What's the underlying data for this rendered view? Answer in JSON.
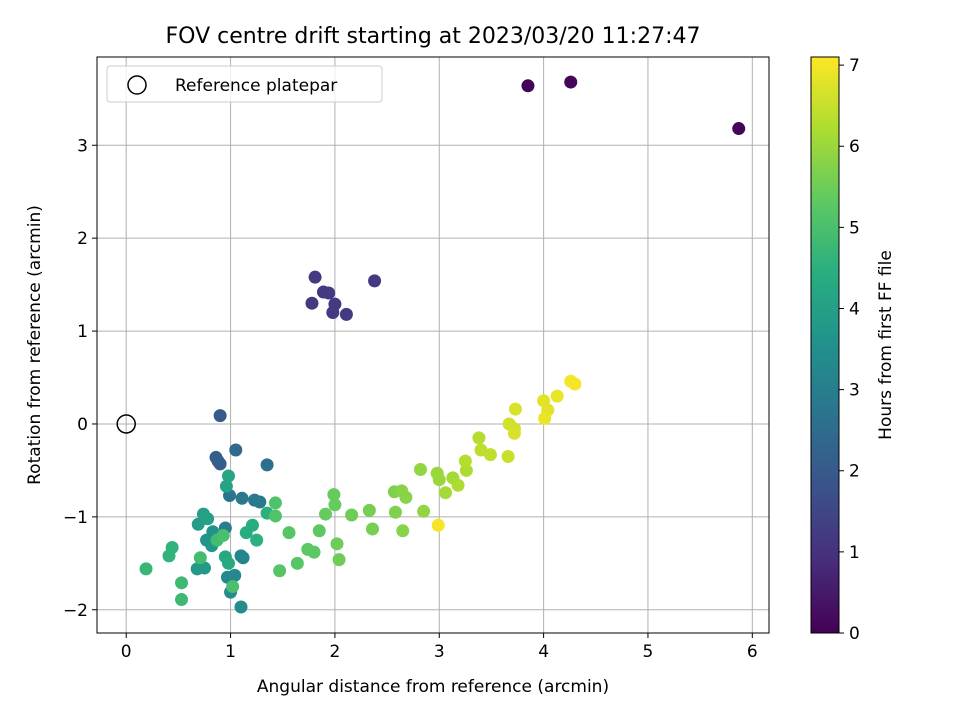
{
  "chart_data": {
    "type": "scatter",
    "title": "FOV centre drift starting at 2023/03/20 11:27:47",
    "xlabel": "Angular distance from reference (arcmin)",
    "ylabel": "Rotation from reference (arcmin)",
    "xlim": [
      -0.28,
      6.16
    ],
    "ylim": [
      -2.25,
      3.95
    ],
    "xticks": [
      0,
      1,
      2,
      3,
      4,
      5,
      6
    ],
    "yticks": [
      -2,
      -1,
      0,
      1,
      2,
      3
    ],
    "xtick_labels": [
      "0",
      "1",
      "2",
      "3",
      "4",
      "5",
      "6"
    ],
    "ytick_labels": [
      "−2",
      "−1",
      "0",
      "1",
      "2",
      "3"
    ],
    "grid": true,
    "legend": {
      "placement": "top-left",
      "entries": [
        "Reference platepar"
      ]
    },
    "reference_point": {
      "x": 0,
      "y": 0
    },
    "colorbar": {
      "label": "Hours from first FF file",
      "range": [
        0,
        7.1
      ],
      "ticks": [
        0,
        1,
        2,
        3,
        4,
        5,
        6,
        7
      ],
      "tick_labels": [
        "0",
        "1",
        "2",
        "3",
        "4",
        "5",
        "6",
        "7"
      ],
      "colormap": "viridis"
    },
    "points": [
      {
        "x": 3.85,
        "y": 3.64,
        "c": 0.1
      },
      {
        "x": 4.26,
        "y": 3.68,
        "c": 0.1
      },
      {
        "x": 5.87,
        "y": 3.18,
        "c": 0.1
      },
      {
        "x": 1.81,
        "y": 1.58,
        "c": 1.2
      },
      {
        "x": 1.89,
        "y": 1.42,
        "c": 1.2
      },
      {
        "x": 1.94,
        "y": 1.41,
        "c": 1.2
      },
      {
        "x": 1.78,
        "y": 1.3,
        "c": 1.2
      },
      {
        "x": 2.0,
        "y": 1.29,
        "c": 1.2
      },
      {
        "x": 1.98,
        "y": 1.2,
        "c": 1.2
      },
      {
        "x": 2.11,
        "y": 1.18,
        "c": 1.2
      },
      {
        "x": 2.38,
        "y": 1.54,
        "c": 1.2
      },
      {
        "x": 0.9,
        "y": 0.09,
        "c": 2.0
      },
      {
        "x": 0.86,
        "y": -0.36,
        "c": 2.1
      },
      {
        "x": 0.88,
        "y": -0.4,
        "c": 2.1
      },
      {
        "x": 0.9,
        "y": -0.43,
        "c": 2.1
      },
      {
        "x": 1.05,
        "y": -0.28,
        "c": 2.4
      },
      {
        "x": 1.35,
        "y": -0.44,
        "c": 2.6
      },
      {
        "x": 0.99,
        "y": -0.77,
        "c": 2.7
      },
      {
        "x": 1.11,
        "y": -0.8,
        "c": 2.8
      },
      {
        "x": 1.23,
        "y": -0.82,
        "c": 2.8
      },
      {
        "x": 1.28,
        "y": -0.84,
        "c": 2.9
      },
      {
        "x": 0.95,
        "y": -1.12,
        "c": 3.0
      },
      {
        "x": 1.1,
        "y": -1.42,
        "c": 3.2
      },
      {
        "x": 1.12,
        "y": -1.44,
        "c": 3.2
      },
      {
        "x": 0.97,
        "y": -1.65,
        "c": 3.3
      },
      {
        "x": 1.04,
        "y": -1.63,
        "c": 3.3
      },
      {
        "x": 1.0,
        "y": -1.81,
        "c": 3.4
      },
      {
        "x": 1.1,
        "y": -1.97,
        "c": 3.4
      },
      {
        "x": 0.83,
        "y": -1.16,
        "c": 3.6
      },
      {
        "x": 0.77,
        "y": -1.25,
        "c": 3.6
      },
      {
        "x": 0.82,
        "y": -1.31,
        "c": 3.7
      },
      {
        "x": 0.68,
        "y": -1.56,
        "c": 3.8
      },
      {
        "x": 0.75,
        "y": -1.55,
        "c": 3.8
      },
      {
        "x": 0.69,
        "y": -1.08,
        "c": 3.9
      },
      {
        "x": 0.74,
        "y": -0.97,
        "c": 4.0
      },
      {
        "x": 0.78,
        "y": -1.02,
        "c": 4.0
      },
      {
        "x": 0.96,
        "y": -0.67,
        "c": 4.1
      },
      {
        "x": 0.98,
        "y": -0.56,
        "c": 4.2
      },
      {
        "x": 0.95,
        "y": -1.43,
        "c": 4.2
      },
      {
        "x": 0.98,
        "y": -1.5,
        "c": 4.3
      },
      {
        "x": 1.15,
        "y": -1.17,
        "c": 4.4
      },
      {
        "x": 1.21,
        "y": -1.09,
        "c": 4.4
      },
      {
        "x": 1.25,
        "y": -1.25,
        "c": 4.5
      },
      {
        "x": 1.35,
        "y": -0.96,
        "c": 4.5
      },
      {
        "x": 0.41,
        "y": -1.42,
        "c": 4.6
      },
      {
        "x": 0.44,
        "y": -1.33,
        "c": 4.6
      },
      {
        "x": 0.19,
        "y": -1.56,
        "c": 4.7
      },
      {
        "x": 0.53,
        "y": -1.71,
        "c": 4.8
      },
      {
        "x": 0.53,
        "y": -1.89,
        "c": 4.8
      },
      {
        "x": 0.71,
        "y": -1.44,
        "c": 4.9
      },
      {
        "x": 0.87,
        "y": -1.25,
        "c": 4.9
      },
      {
        "x": 0.93,
        "y": -1.2,
        "c": 5.0
      },
      {
        "x": 1.02,
        "y": -1.75,
        "c": 5.0
      },
      {
        "x": 1.43,
        "y": -0.85,
        "c": 5.1
      },
      {
        "x": 1.43,
        "y": -0.99,
        "c": 5.1
      },
      {
        "x": 1.47,
        "y": -1.58,
        "c": 5.2
      },
      {
        "x": 1.56,
        "y": -1.17,
        "c": 5.2
      },
      {
        "x": 1.64,
        "y": -1.5,
        "c": 5.2
      },
      {
        "x": 1.74,
        "y": -1.35,
        "c": 5.3
      },
      {
        "x": 1.8,
        "y": -1.38,
        "c": 5.3
      },
      {
        "x": 1.85,
        "y": -1.15,
        "c": 5.3
      },
      {
        "x": 1.91,
        "y": -0.97,
        "c": 5.4
      },
      {
        "x": 1.99,
        "y": -0.76,
        "c": 5.4
      },
      {
        "x": 2.0,
        "y": -0.87,
        "c": 5.4
      },
      {
        "x": 2.02,
        "y": -1.29,
        "c": 5.5
      },
      {
        "x": 2.04,
        "y": -1.46,
        "c": 5.5
      },
      {
        "x": 2.16,
        "y": -0.98,
        "c": 5.5
      },
      {
        "x": 2.33,
        "y": -0.93,
        "c": 5.6
      },
      {
        "x": 2.36,
        "y": -1.13,
        "c": 5.6
      },
      {
        "x": 2.57,
        "y": -0.73,
        "c": 5.7
      },
      {
        "x": 2.58,
        "y": -0.95,
        "c": 5.7
      },
      {
        "x": 2.64,
        "y": -0.72,
        "c": 5.8
      },
      {
        "x": 2.68,
        "y": -0.79,
        "c": 5.8
      },
      {
        "x": 2.65,
        "y": -1.15,
        "c": 5.8
      },
      {
        "x": 2.82,
        "y": -0.49,
        "c": 5.9
      },
      {
        "x": 2.85,
        "y": -0.94,
        "c": 5.9
      },
      {
        "x": 2.98,
        "y": -0.53,
        "c": 6.0
      },
      {
        "x": 3.0,
        "y": -0.6,
        "c": 6.0
      },
      {
        "x": 3.06,
        "y": -0.74,
        "c": 6.1
      },
      {
        "x": 3.13,
        "y": -0.58,
        "c": 6.1
      },
      {
        "x": 3.18,
        "y": -0.66,
        "c": 6.2
      },
      {
        "x": 3.26,
        "y": -0.5,
        "c": 6.2
      },
      {
        "x": 3.25,
        "y": -0.4,
        "c": 6.3
      },
      {
        "x": 3.38,
        "y": -0.15,
        "c": 6.3
      },
      {
        "x": 3.4,
        "y": -0.28,
        "c": 6.4
      },
      {
        "x": 3.49,
        "y": -0.33,
        "c": 6.4
      },
      {
        "x": 3.66,
        "y": -0.35,
        "c": 6.5
      },
      {
        "x": 3.67,
        "y": 0.0,
        "c": 6.6
      },
      {
        "x": 3.72,
        "y": -0.05,
        "c": 6.6
      },
      {
        "x": 3.73,
        "y": 0.16,
        "c": 6.7
      },
      {
        "x": 3.72,
        "y": -0.1,
        "c": 6.7
      },
      {
        "x": 4.0,
        "y": 0.25,
        "c": 6.8
      },
      {
        "x": 4.04,
        "y": 0.15,
        "c": 6.8
      },
      {
        "x": 4.01,
        "y": 0.06,
        "c": 6.9
      },
      {
        "x": 4.13,
        "y": 0.3,
        "c": 6.9
      },
      {
        "x": 4.26,
        "y": 0.46,
        "c": 7.0
      },
      {
        "x": 4.3,
        "y": 0.43,
        "c": 7.0
      },
      {
        "x": 2.99,
        "y": -1.09,
        "c": 7.0
      }
    ]
  }
}
